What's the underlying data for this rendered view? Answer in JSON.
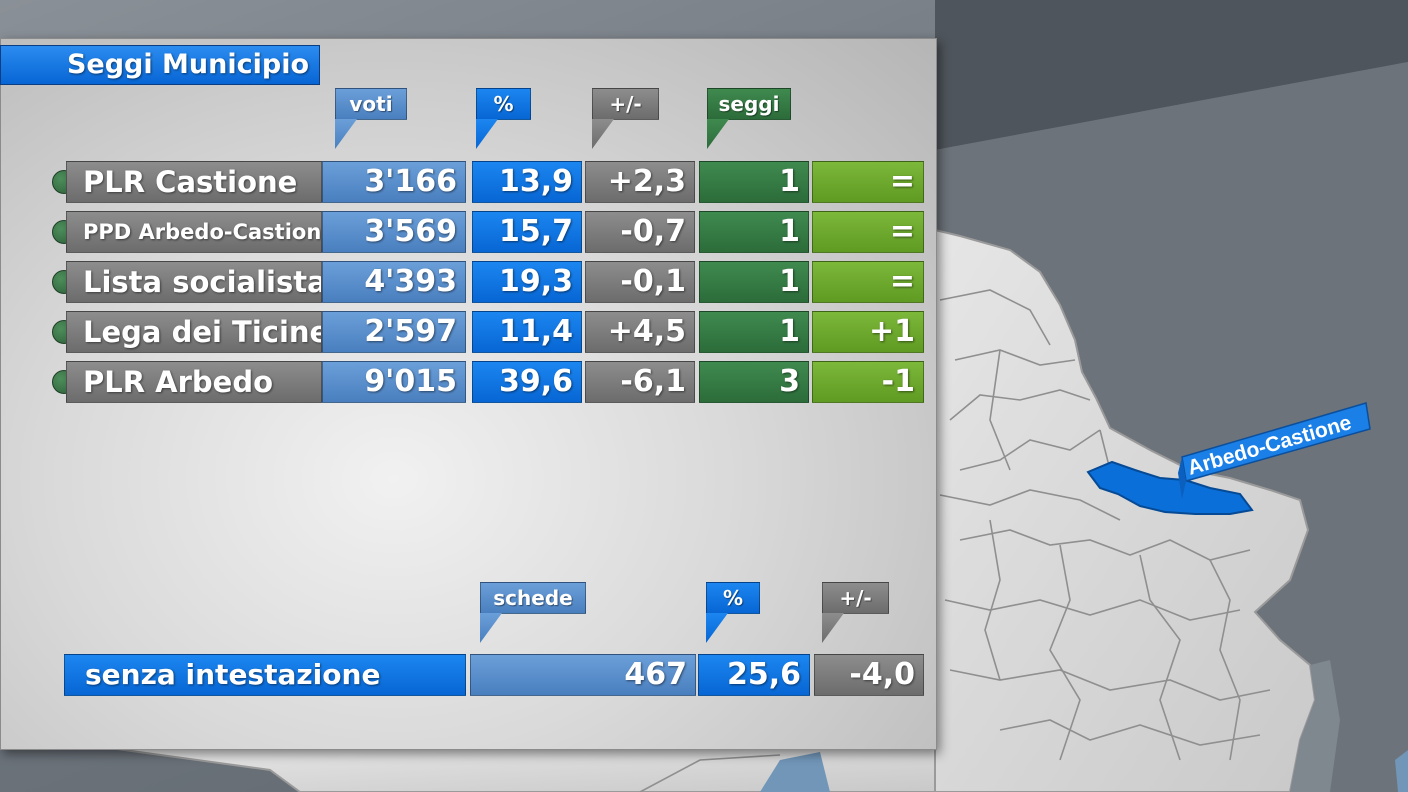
{
  "title": "Seggi Municipio",
  "columns": {
    "voti": "voti",
    "pct": "%",
    "diff": "+/-",
    "seggi": "seggi"
  },
  "parties": [
    {
      "name": "PLR Castione",
      "voti": "3'166",
      "pct": "13,9",
      "diff": "+2,3",
      "seggi": "1",
      "change": "="
    },
    {
      "name": "PPD Arbedo-Castione",
      "voti": "3'569",
      "pct": "15,7",
      "diff": "-0,7",
      "seggi": "1",
      "change": "="
    },
    {
      "name": "Lista socialista",
      "voti": "4'393",
      "pct": "19,3",
      "diff": "-0,1",
      "seggi": "1",
      "change": "="
    },
    {
      "name": "Lega dei Ticinesi",
      "voti": "2'597",
      "pct": "11,4",
      "diff": "+4,5",
      "seggi": "1",
      "change": "+1"
    },
    {
      "name": "PLR Arbedo",
      "voti": "9'015",
      "pct": "39,6",
      "diff": "-6,1",
      "seggi": "3",
      "change": "-1"
    }
  ],
  "bottom_columns": {
    "schede": "schede",
    "pct": "%",
    "diff": "+/-"
  },
  "blank": {
    "label": "senza intestazione",
    "schede": "467",
    "pct": "25,6",
    "diff": "-4,0"
  },
  "map": {
    "highlight_label": "Arbedo-Castione",
    "highlight_color": "#0a6fd8"
  }
}
